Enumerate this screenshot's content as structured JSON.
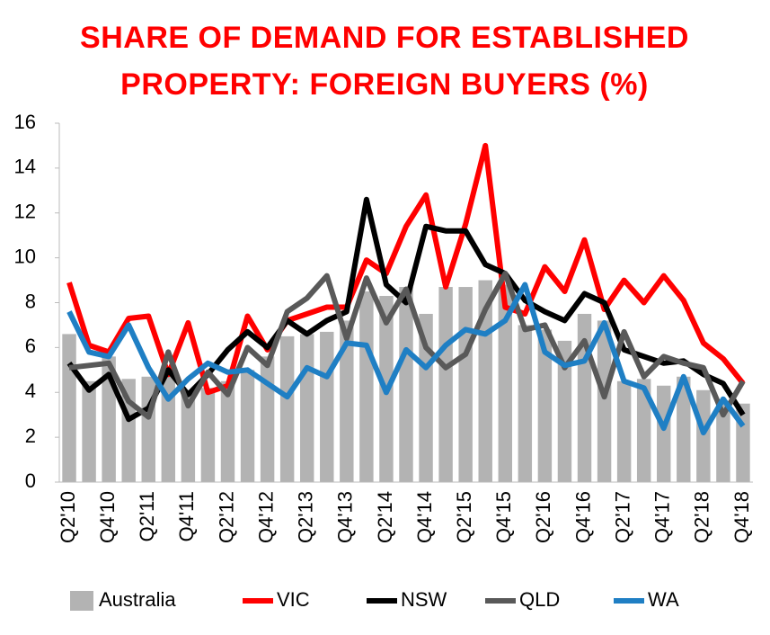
{
  "chart_data": {
    "type": "bar-line",
    "title": [
      "SHARE OF DEMAND FOR ESTABLISHED",
      "PROPERTY: FOREIGN BUYERS (%)"
    ],
    "categories": [
      "Q2'10",
      null,
      "Q4'10",
      null,
      "Q2'11",
      null,
      "Q4'11",
      null,
      "Q2'12",
      null,
      "Q4'12",
      null,
      "Q2'13",
      null,
      "Q4'13",
      null,
      "Q2'14",
      null,
      "Q4'14",
      null,
      "Q2'15",
      null,
      "Q4'15",
      null,
      "Q2'16",
      null,
      "Q4'16",
      null,
      "Q2'17",
      null,
      "Q4'17",
      null,
      "Q2'18",
      null,
      "Q4'18"
    ],
    "series": [
      {
        "name": "Australia",
        "type": "bar",
        "color": "#b3b3b3",
        "values": [
          6.6,
          4.5,
          5.6,
          4.6,
          4.7,
          5.0,
          4.1,
          4.2,
          4.5,
          5.0,
          5.6,
          6.5,
          6.6,
          6.7,
          7.2,
          8.5,
          8.3,
          8.7,
          7.5,
          8.7,
          8.7,
          9.0,
          8.8,
          7.0,
          6.8,
          6.3,
          7.5,
          7.2,
          4.5,
          4.6,
          4.3,
          4.7,
          4.1,
          3.6,
          3.5
        ]
      },
      {
        "name": "VIC",
        "type": "line",
        "color": "#ff0000",
        "values": [
          8.9,
          6.1,
          5.8,
          7.3,
          7.4,
          4.8,
          7.1,
          4.0,
          4.3,
          7.4,
          5.9,
          7.2,
          7.5,
          7.8,
          7.8,
          9.9,
          9.3,
          11.4,
          12.8,
          8.7,
          11.5,
          15.0,
          7.8,
          7.5,
          9.6,
          8.5,
          10.8,
          7.7,
          9.0,
          8.0,
          9.2,
          8.1,
          6.2,
          5.5,
          4.4
        ]
      },
      {
        "name": "NSW",
        "type": "line",
        "color": "#000000",
        "values": [
          5.3,
          4.1,
          4.8,
          2.8,
          3.3,
          5.0,
          3.9,
          4.8,
          5.9,
          6.7,
          6.0,
          7.2,
          6.6,
          7.2,
          7.6,
          12.6,
          8.8,
          8.0,
          11.4,
          11.2,
          11.2,
          9.7,
          9.3,
          8.1,
          7.6,
          7.2,
          8.4,
          8.0,
          5.9,
          5.6,
          5.3,
          5.4,
          4.8,
          4.4,
          3.0
        ]
      },
      {
        "name": "QLD",
        "type": "line",
        "color": "#595959",
        "values": [
          5.1,
          5.2,
          5.3,
          3.6,
          2.9,
          5.8,
          3.4,
          4.9,
          3.9,
          6.0,
          5.2,
          7.6,
          8.2,
          9.2,
          6.4,
          9.1,
          7.1,
          8.6,
          6.0,
          5.1,
          5.7,
          7.7,
          9.3,
          6.8,
          7.0,
          5.1,
          6.3,
          3.8,
          6.7,
          4.7,
          5.6,
          5.3,
          5.1,
          3.0,
          4.5
        ]
      },
      {
        "name": "WA",
        "type": "line",
        "color": "#1f7fc4",
        "values": [
          7.6,
          5.8,
          5.6,
          7.0,
          5.1,
          3.7,
          4.6,
          5.3,
          4.9,
          5.0,
          4.4,
          3.8,
          5.1,
          4.7,
          6.2,
          6.1,
          4.0,
          5.9,
          5.1,
          6.1,
          6.8,
          6.6,
          7.2,
          8.8,
          5.8,
          5.2,
          5.4,
          7.1,
          4.5,
          4.2,
          2.4,
          4.7,
          2.2,
          3.7,
          2.5
        ]
      }
    ],
    "ylim": [
      0,
      16
    ],
    "yticks": [
      0,
      2,
      4,
      6,
      8,
      10,
      12,
      14,
      16
    ],
    "legend": "bottom"
  }
}
